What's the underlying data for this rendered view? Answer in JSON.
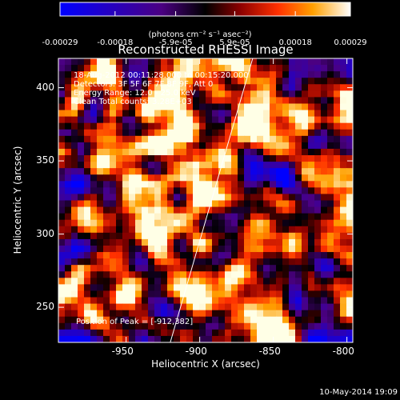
{
  "colorbar": {
    "ticks": [
      "-0.00029",
      "-0.00018",
      "-5.9e-05",
      "5.9e-05",
      "0.00018",
      "0.00029"
    ],
    "tick_values": [
      -0.00029,
      -0.00018,
      -5.9e-05,
      5.9e-05,
      0.00018,
      0.00029
    ],
    "label": "(photons cm⁻² s⁻¹ asec⁻²)",
    "range": [
      -0.00029,
      0.00029
    ],
    "colormap": [
      "#0000ff",
      "#4b0082",
      "#000000",
      "#7a0000",
      "#ff2a00",
      "#ff9a00",
      "#ffff66",
      "#ffffff"
    ]
  },
  "chart_data": {
    "type": "heatmap",
    "title": "Reconstructed RHESSI Image",
    "xlabel": "Heliocentric X (arcsec)",
    "ylabel": "Heliocentric Y (arcsec)",
    "xlim": [
      -996,
      -796
    ],
    "ylim": [
      226,
      420
    ],
    "xticks": [
      -950,
      -900,
      -850,
      -800
    ],
    "yticks": [
      250,
      300,
      350,
      400
    ],
    "limb_line": [
      [
        -920,
        226
      ],
      [
        -864,
        420
      ]
    ],
    "peak": [
      -912,
      382
    ],
    "annotations": [
      "18-Aug-2012 00:11:28.000 to 00:15:20.000",
      "Detectors: 3F 5F 6F 7F 8F 9F, Att 0",
      "Energy Range: 12.0 - 25.0 keV",
      "Clean    Total counts: 3.28E+03"
    ],
    "peak_label": "Position of Peak = [-912,382]",
    "grid": false
  },
  "footer": {
    "timestamp": "10-May-2014 19:09"
  }
}
